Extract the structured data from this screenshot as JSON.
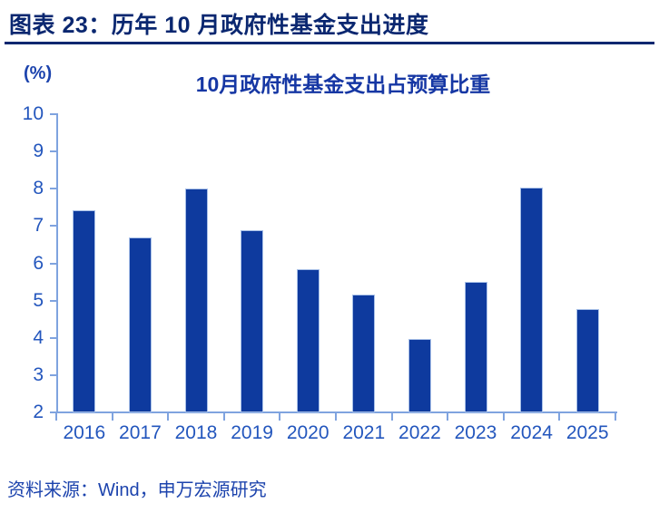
{
  "page": {
    "header": "图表 23：历年 10 月政府性基金支出进度",
    "source": "资料来源：Wind，申万宏源研究"
  },
  "chart_data": {
    "type": "bar",
    "title": "10月政府性基金支出占预算比重",
    "unit_label": "(%)",
    "categories": [
      "2016",
      "2017",
      "2018",
      "2019",
      "2020",
      "2021",
      "2022",
      "2023",
      "2024",
      "2025"
    ],
    "values": [
      7.42,
      6.7,
      8.01,
      6.88,
      5.85,
      5.15,
      3.96,
      5.51,
      8.03,
      4.76
    ],
    "ylim": [
      2,
      10
    ],
    "ytick_step": 1,
    "grid": false,
    "legend": "none",
    "colors": {
      "bar": "#0E3A9E",
      "bar_edge": "#A8C0E8",
      "axis": "#7FA3DF",
      "tick_label": "#2356BD",
      "title": "#1637A4",
      "header": "#0A2770",
      "source": "#1C43AD"
    }
  }
}
